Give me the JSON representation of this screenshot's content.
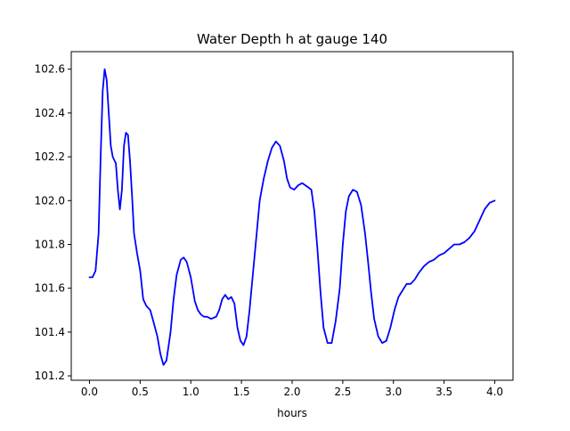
{
  "chart_data": {
    "type": "line",
    "title": "Water Depth h at gauge 140",
    "xlabel": "hours",
    "ylabel": "",
    "xlim": [
      -0.18,
      4.18
    ],
    "ylim": [
      101.18,
      102.68
    ],
    "xticks": [
      0.0,
      0.5,
      1.0,
      1.5,
      2.0,
      2.5,
      3.0,
      3.5,
      4.0
    ],
    "xtick_labels": [
      "0.0",
      "0.5",
      "1.0",
      "1.5",
      "2.0",
      "2.5",
      "3.0",
      "3.5",
      "4.0"
    ],
    "yticks": [
      101.2,
      101.4,
      101.6,
      101.8,
      102.0,
      102.2,
      102.4,
      102.6
    ],
    "ytick_labels": [
      "101.2",
      "101.4",
      "101.6",
      "101.8",
      "102.0",
      "102.2",
      "102.4",
      "102.6"
    ],
    "grid": false,
    "colors": {
      "line": "#0000ff",
      "axes": "#000000",
      "background": "#ffffff"
    },
    "series": [
      {
        "x": [
          0.0,
          0.03,
          0.06,
          0.09,
          0.11,
          0.13,
          0.15,
          0.17,
          0.19,
          0.21,
          0.23,
          0.26,
          0.28,
          0.3,
          0.32,
          0.34,
          0.36,
          0.38,
          0.4,
          0.42,
          0.44,
          0.47,
          0.5,
          0.53,
          0.56,
          0.6,
          0.63,
          0.67,
          0.7,
          0.73,
          0.76,
          0.8,
          0.83,
          0.86,
          0.9,
          0.93,
          0.96,
          1.0,
          1.04,
          1.07,
          1.1,
          1.13,
          1.16,
          1.2,
          1.25,
          1.28,
          1.31,
          1.34,
          1.37,
          1.4,
          1.43,
          1.46,
          1.49,
          1.52,
          1.55,
          1.58,
          1.61,
          1.65,
          1.68,
          1.72,
          1.76,
          1.8,
          1.84,
          1.88,
          1.92,
          1.95,
          1.98,
          2.02,
          2.06,
          2.1,
          2.13,
          2.16,
          2.19,
          2.22,
          2.25,
          2.28,
          2.31,
          2.35,
          2.39,
          2.43,
          2.47,
          2.5,
          2.53,
          2.56,
          2.6,
          2.64,
          2.68,
          2.72,
          2.75,
          2.78,
          2.81,
          2.85,
          2.89,
          2.93,
          2.97,
          3.01,
          3.05,
          3.09,
          3.13,
          3.17,
          3.21,
          3.25,
          3.3,
          3.35,
          3.4,
          3.45,
          3.5,
          3.55,
          3.6,
          3.65,
          3.7,
          3.75,
          3.8,
          3.85,
          3.9,
          3.95,
          4.0
        ],
        "y": [
          101.65,
          101.65,
          101.68,
          101.85,
          102.2,
          102.5,
          102.6,
          102.55,
          102.4,
          102.25,
          102.2,
          102.17,
          102.05,
          101.96,
          102.05,
          102.25,
          102.31,
          102.3,
          102.18,
          102.02,
          101.85,
          101.76,
          101.68,
          101.55,
          101.52,
          101.5,
          101.45,
          101.38,
          101.3,
          101.25,
          101.27,
          101.4,
          101.55,
          101.66,
          101.73,
          101.74,
          101.72,
          101.65,
          101.54,
          101.5,
          101.48,
          101.47,
          101.47,
          101.46,
          101.47,
          101.5,
          101.55,
          101.57,
          101.55,
          101.56,
          101.53,
          101.42,
          101.36,
          101.34,
          101.38,
          101.5,
          101.65,
          101.85,
          102.0,
          102.1,
          102.18,
          102.24,
          102.27,
          102.25,
          102.18,
          102.1,
          102.06,
          102.05,
          102.07,
          102.08,
          102.07,
          102.06,
          102.05,
          101.95,
          101.78,
          101.58,
          101.42,
          101.35,
          101.35,
          101.45,
          101.6,
          101.8,
          101.95,
          102.02,
          102.05,
          102.04,
          101.98,
          101.85,
          101.72,
          101.58,
          101.46,
          101.38,
          101.35,
          101.36,
          101.42,
          101.5,
          101.56,
          101.59,
          101.62,
          101.62,
          101.64,
          101.67,
          101.7,
          101.72,
          101.73,
          101.75,
          101.76,
          101.78,
          101.8,
          101.8,
          101.81,
          101.83,
          101.86,
          101.91,
          101.96,
          101.99,
          102.0
        ]
      }
    ]
  }
}
